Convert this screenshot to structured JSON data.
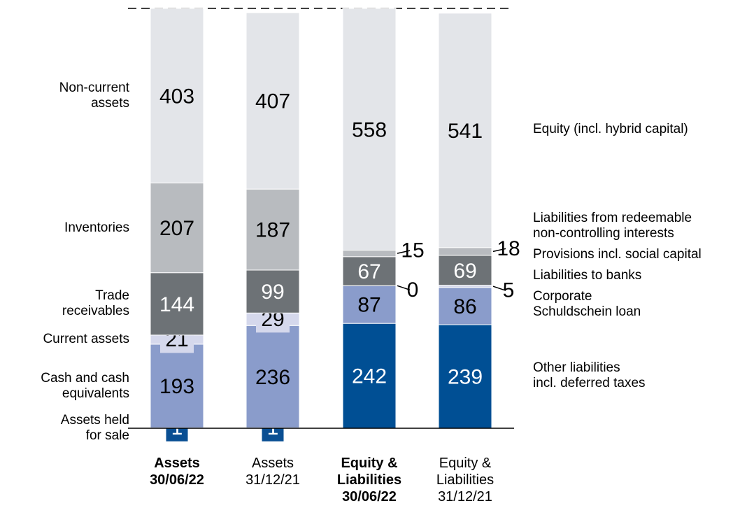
{
  "chart_data": {
    "type": "stacked_bar",
    "categories": [
      "Assets\n30/06/22",
      "Assets\n31/12/21",
      "Equity &\nLiabilities\n30/06/22",
      "Equity &\nLiabilities\n31/12/21"
    ],
    "category_bold": [
      true,
      false,
      true,
      false
    ],
    "ylim": [
      0,
      969
    ],
    "series": [
      {
        "name": "Assets held\nfor sale",
        "color": "#0a4f93",
        "values": [
          1,
          1,
          null,
          null
        ]
      },
      {
        "name": "Cash and cash\nequivalents",
        "color": "#8a9ccb",
        "values": [
          193,
          236,
          null,
          null
        ]
      },
      {
        "name": "Current assets",
        "color": "#d5d8ec",
        "values": [
          21,
          29,
          null,
          null
        ]
      },
      {
        "name": "Trade\nreceivables",
        "color": "#6d7276",
        "values": [
          144,
          99,
          null,
          null
        ]
      },
      {
        "name": "Inventories",
        "color": "#b8bbbf",
        "values": [
          207,
          187,
          null,
          null
        ]
      },
      {
        "name": "Non-current\nassets",
        "color": "#e3e5e9",
        "values": [
          403,
          407,
          null,
          null
        ]
      },
      {
        "name": "Other liabilities\nincl. deferred taxes",
        "color": "#004f94",
        "values": [
          null,
          null,
          242,
          239
        ]
      },
      {
        "name": "Corporate\nSchuldschein loan",
        "color": "#8a9ccb",
        "values": [
          null,
          null,
          87,
          86
        ]
      },
      {
        "name": "Liabilities to banks",
        "color": "#d5d8ec",
        "values": [
          null,
          null,
          0,
          5
        ]
      },
      {
        "name": "Provisions incl. social capital",
        "color": "#6d7276",
        "values": [
          null,
          null,
          67,
          69
        ]
      },
      {
        "name": "Liabilities from redeemable\nnon-controlling interests",
        "color": "#b8bbbf",
        "values": [
          null,
          null,
          15,
          18
        ]
      },
      {
        "name": "Equity (incl. hybrid capital)",
        "color": "#e3e5e9",
        "values": [
          null,
          null,
          558,
          541
        ]
      }
    ]
  }
}
